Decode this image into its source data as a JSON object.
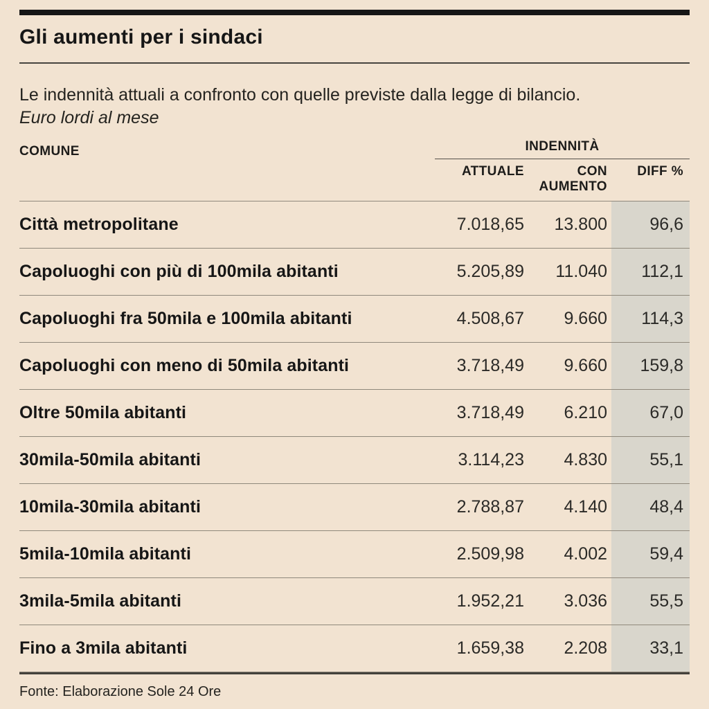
{
  "page": {
    "title": "Gli aumenti per i sindaci",
    "subtitle": "Le indennità attuali a confronto con quelle previste dalla legge di bilancio.",
    "unit_note": "Euro lordi al mese",
    "source": "Fonte: Elaborazione Sole 24 Ore"
  },
  "table": {
    "col_comune": "COMUNE",
    "group_header": "INDENNITÀ",
    "col_attuale": "ATTUALE",
    "col_con_aumento": "CON AUMENTO",
    "col_diff": "DIFF %",
    "rows": [
      {
        "comune": "Città metropolitane",
        "attuale": "7.018,65",
        "con_aumento": "13.800",
        "diff": "96,6"
      },
      {
        "comune": "Capoluoghi con più di 100mila abitanti",
        "attuale": "5.205,89",
        "con_aumento": "11.040",
        "diff": "112,1"
      },
      {
        "comune": "Capoluoghi fra 50mila e 100mila abitanti",
        "attuale": "4.508,67",
        "con_aumento": "9.660",
        "diff": "114,3"
      },
      {
        "comune": "Capoluoghi con meno di 50mila abitanti",
        "attuale": "3.718,49",
        "con_aumento": "9.660",
        "diff": "159,8"
      },
      {
        "comune": "Oltre 50mila abitanti",
        "attuale": "3.718,49",
        "con_aumento": "6.210",
        "diff": "67,0"
      },
      {
        "comune": "30mila-50mila abitanti",
        "attuale": "3.114,23",
        "con_aumento": "4.830",
        "diff": "55,1"
      },
      {
        "comune": "10mila-30mila abitanti",
        "attuale": "2.788,87",
        "con_aumento": "4.140",
        "diff": "48,4"
      },
      {
        "comune": "5mila-10mila abitanti",
        "attuale": "2.509,98",
        "con_aumento": "4.002",
        "diff": "59,4"
      },
      {
        "comune": "3mila-5mila abitanti",
        "attuale": "1.952,21",
        "con_aumento": "3.036",
        "diff": "55,5"
      },
      {
        "comune": "Fino a 3mila abitanti",
        "attuale": "1.659,38",
        "con_aumento": "2.208",
        "diff": "33,1"
      }
    ]
  },
  "colors": {
    "background": "#f2e3d1",
    "diff_band": "#d9d6cc",
    "top_bar": "#161616",
    "separator": "#8f887b",
    "bottom_rule": "#44423c"
  },
  "chart_data": {
    "type": "table",
    "title": "Gli aumenti per i sindaci",
    "subtitle": "Le indennità attuali a confronto con quelle previste dalla legge di bilancio. Euro lordi al mese",
    "columns": [
      "COMUNE",
      "INDENNITÀ ATTUALE",
      "INDENNITÀ CON AUMENTO",
      "DIFF %"
    ],
    "rows": [
      [
        "Città metropolitane",
        7018.65,
        13800,
        96.6
      ],
      [
        "Capoluoghi con più di 100mila abitanti",
        5205.89,
        11040,
        112.1
      ],
      [
        "Capoluoghi fra 50mila e 100mila abitanti",
        4508.67,
        9660,
        114.3
      ],
      [
        "Capoluoghi con meno di 50mila abitanti",
        3718.49,
        9660,
        159.8
      ],
      [
        "Oltre 50mila abitanti",
        3718.49,
        6210,
        67.0
      ],
      [
        "30mila-50mila abitanti",
        3114.23,
        4830,
        55.1
      ],
      [
        "10mila-30mila abitanti",
        2788.87,
        4140,
        48.4
      ],
      [
        "5mila-10mila abitanti",
        2509.98,
        4002,
        59.4
      ],
      [
        "3mila-5mila abitanti",
        1952.21,
        3036,
        55.5
      ],
      [
        "Fino a 3mila abitanti",
        1659.38,
        2208,
        33.1
      ]
    ],
    "source": "Fonte: Elaborazione Sole 24 Ore"
  }
}
